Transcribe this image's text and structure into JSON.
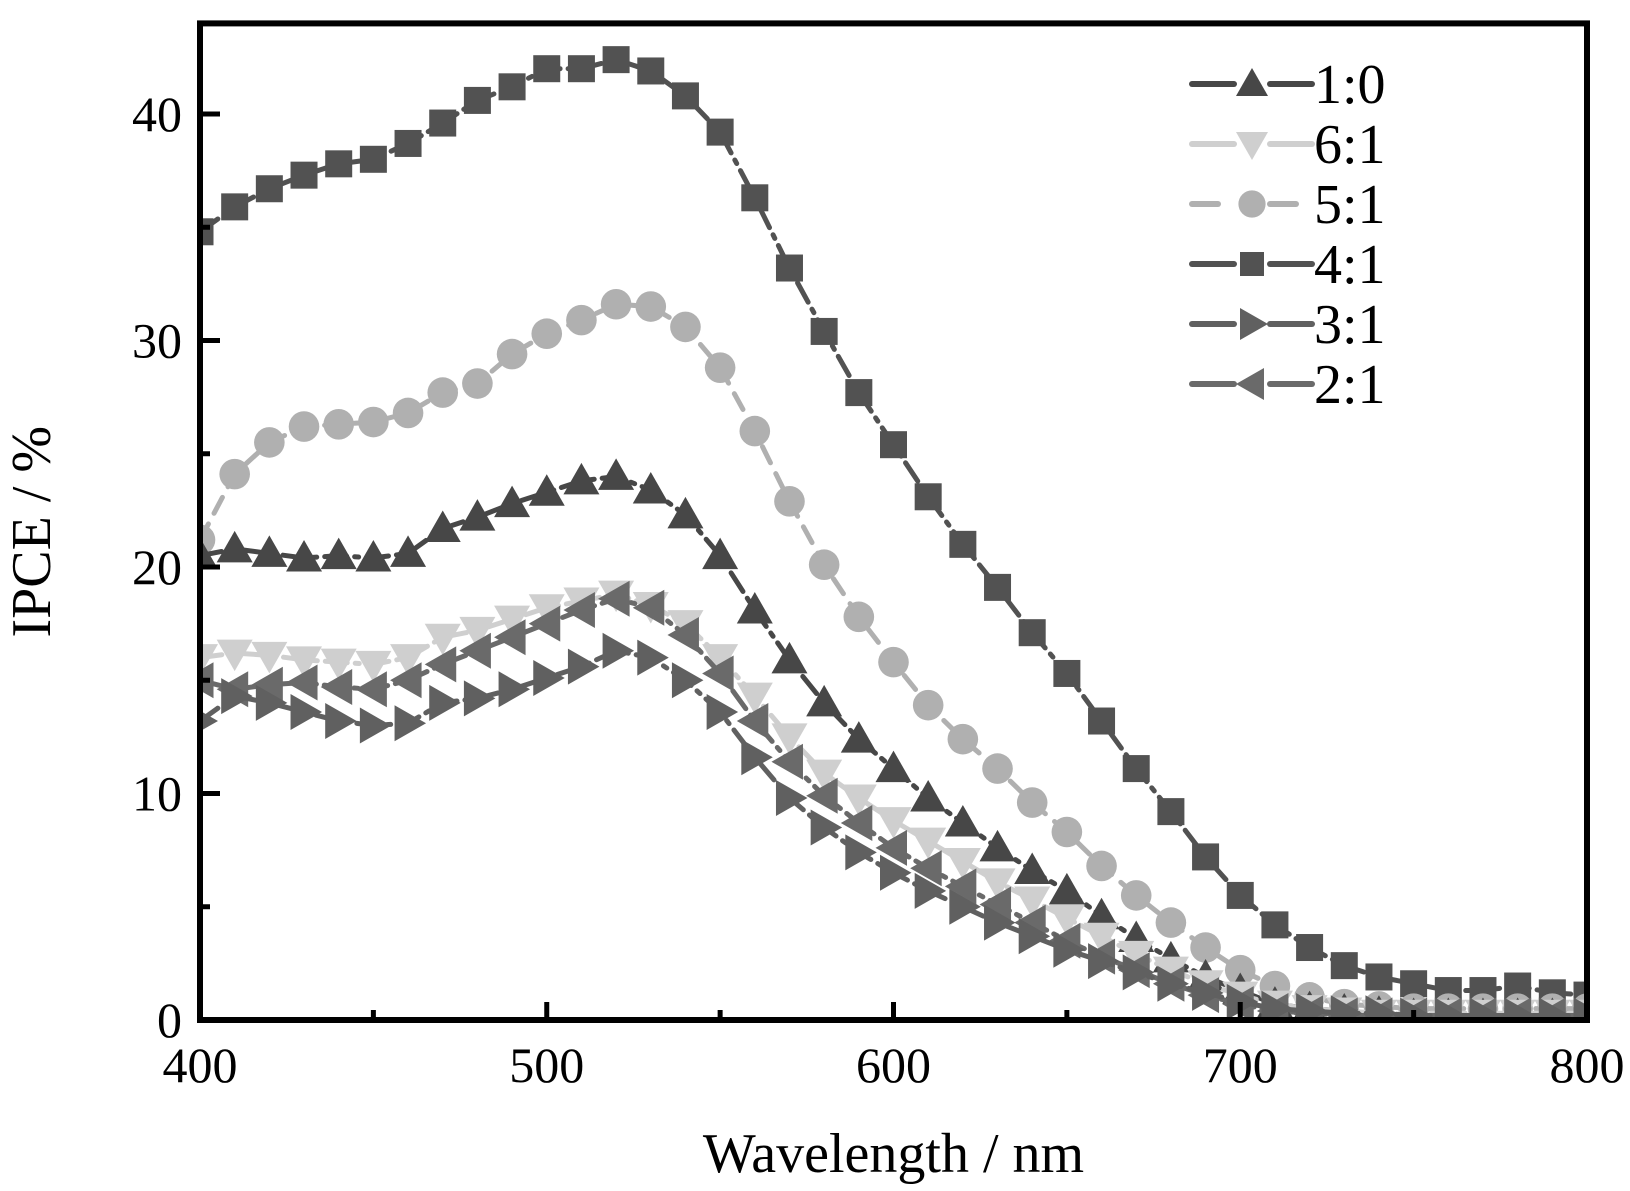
{
  "chart_data": {
    "type": "line",
    "title": "",
    "xlabel": "Wavelength / nm",
    "ylabel": "IPCE / %",
    "xlim": [
      400,
      800
    ],
    "ylim": [
      0,
      44
    ],
    "x_ticks": [
      400,
      500,
      600,
      700,
      800
    ],
    "x_minor_step": 50,
    "y_ticks": [
      0,
      10,
      20,
      30,
      40
    ],
    "y_minor_step": 5,
    "grid": false,
    "legend_position": "top-right",
    "x": [
      400,
      410,
      420,
      430,
      440,
      450,
      460,
      470,
      480,
      490,
      500,
      510,
      520,
      530,
      540,
      550,
      560,
      570,
      580,
      590,
      600,
      610,
      620,
      630,
      640,
      650,
      660,
      670,
      680,
      690,
      700,
      710,
      720,
      730,
      740,
      750,
      760,
      770,
      780,
      790,
      800
    ],
    "series": [
      {
        "name": "1:0",
        "marker": "triangle-up",
        "color": "#474747",
        "dash": "dashdot",
        "values": [
          20.5,
          20.8,
          20.6,
          20.4,
          20.5,
          20.4,
          20.6,
          21.7,
          22.2,
          22.8,
          23.3,
          23.8,
          24.0,
          23.4,
          22.3,
          20.5,
          18.1,
          15.9,
          14.0,
          12.4,
          11.1,
          9.8,
          8.7,
          7.6,
          6.6,
          5.7,
          4.6,
          3.6,
          2.7,
          1.9,
          1.3,
          0.7,
          0.5,
          0.4,
          0.3,
          0.2,
          0.2,
          0.2,
          0.2,
          0.2,
          0.2
        ]
      },
      {
        "name": "6:1",
        "marker": "triangle-down",
        "color": "#cfcfcf",
        "dash": "dashdot",
        "values": [
          16.0,
          16.2,
          16.1,
          15.9,
          15.8,
          15.7,
          16.0,
          16.9,
          17.2,
          17.7,
          18.2,
          18.5,
          18.8,
          18.3,
          17.5,
          16.0,
          14.3,
          12.5,
          10.9,
          9.8,
          8.8,
          7.9,
          7.0,
          6.1,
          5.3,
          4.5,
          3.7,
          2.9,
          2.2,
          1.6,
          1.1,
          0.7,
          0.5,
          0.4,
          0.3,
          0.3,
          0.3,
          0.3,
          0.3,
          0.3,
          0.3
        ]
      },
      {
        "name": "5:1",
        "marker": "circle",
        "color": "#b0b0b0",
        "dash": "dash",
        "values": [
          21.2,
          24.1,
          25.5,
          26.2,
          26.3,
          26.4,
          26.8,
          27.7,
          28.1,
          29.4,
          30.3,
          30.9,
          31.6,
          31.5,
          30.6,
          28.8,
          26.0,
          22.9,
          20.1,
          17.8,
          15.8,
          13.9,
          12.4,
          11.1,
          9.6,
          8.3,
          6.8,
          5.5,
          4.3,
          3.2,
          2.2,
          1.5,
          1.0,
          0.7,
          0.6,
          0.5,
          0.5,
          0.5,
          0.5,
          0.5,
          0.5
        ]
      },
      {
        "name": "4:1",
        "marker": "square",
        "color": "#525252",
        "dash": "dashdot",
        "values": [
          34.8,
          35.9,
          36.7,
          37.3,
          37.8,
          38.0,
          38.7,
          39.6,
          40.6,
          41.2,
          42.0,
          42.0,
          42.4,
          41.9,
          40.8,
          39.2,
          36.3,
          33.2,
          30.4,
          27.7,
          25.4,
          23.1,
          21.0,
          19.1,
          17.1,
          15.3,
          13.2,
          11.1,
          9.2,
          7.2,
          5.5,
          4.2,
          3.2,
          2.4,
          1.9,
          1.6,
          1.3,
          1.3,
          1.5,
          1.2,
          1.1
        ]
      },
      {
        "name": "3:1",
        "marker": "triangle-right",
        "color": "#606060",
        "dash": "dashdot",
        "values": [
          13.2,
          14.3,
          14.0,
          13.6,
          13.2,
          13.0,
          13.1,
          14.0,
          14.2,
          14.6,
          15.1,
          15.6,
          16.3,
          16.0,
          15.0,
          13.6,
          11.6,
          9.8,
          8.5,
          7.4,
          6.5,
          5.7,
          5.0,
          4.3,
          3.7,
          3.1,
          2.6,
          2.1,
          1.6,
          1.2,
          0.8,
          0.5,
          0.4,
          0.3,
          0.3,
          0.2,
          0.2,
          0.2,
          0.2,
          0.2,
          0.2
        ]
      },
      {
        "name": "2:1",
        "marker": "triangle-left",
        "color": "#6a6a6a",
        "dash": "dashdot",
        "values": [
          15.0,
          14.6,
          14.8,
          14.9,
          14.7,
          14.6,
          15.0,
          15.7,
          16.3,
          16.9,
          17.5,
          18.1,
          18.6,
          18.2,
          17.0,
          15.3,
          13.2,
          11.4,
          9.9,
          8.7,
          7.6,
          6.7,
          5.9,
          5.1,
          4.3,
          3.5,
          2.8,
          2.2,
          1.6,
          1.1,
          0.7,
          0.4,
          0.3,
          0.2,
          0.2,
          0.2,
          0.2,
          0.2,
          0.2,
          0.2,
          0.2
        ]
      }
    ]
  }
}
